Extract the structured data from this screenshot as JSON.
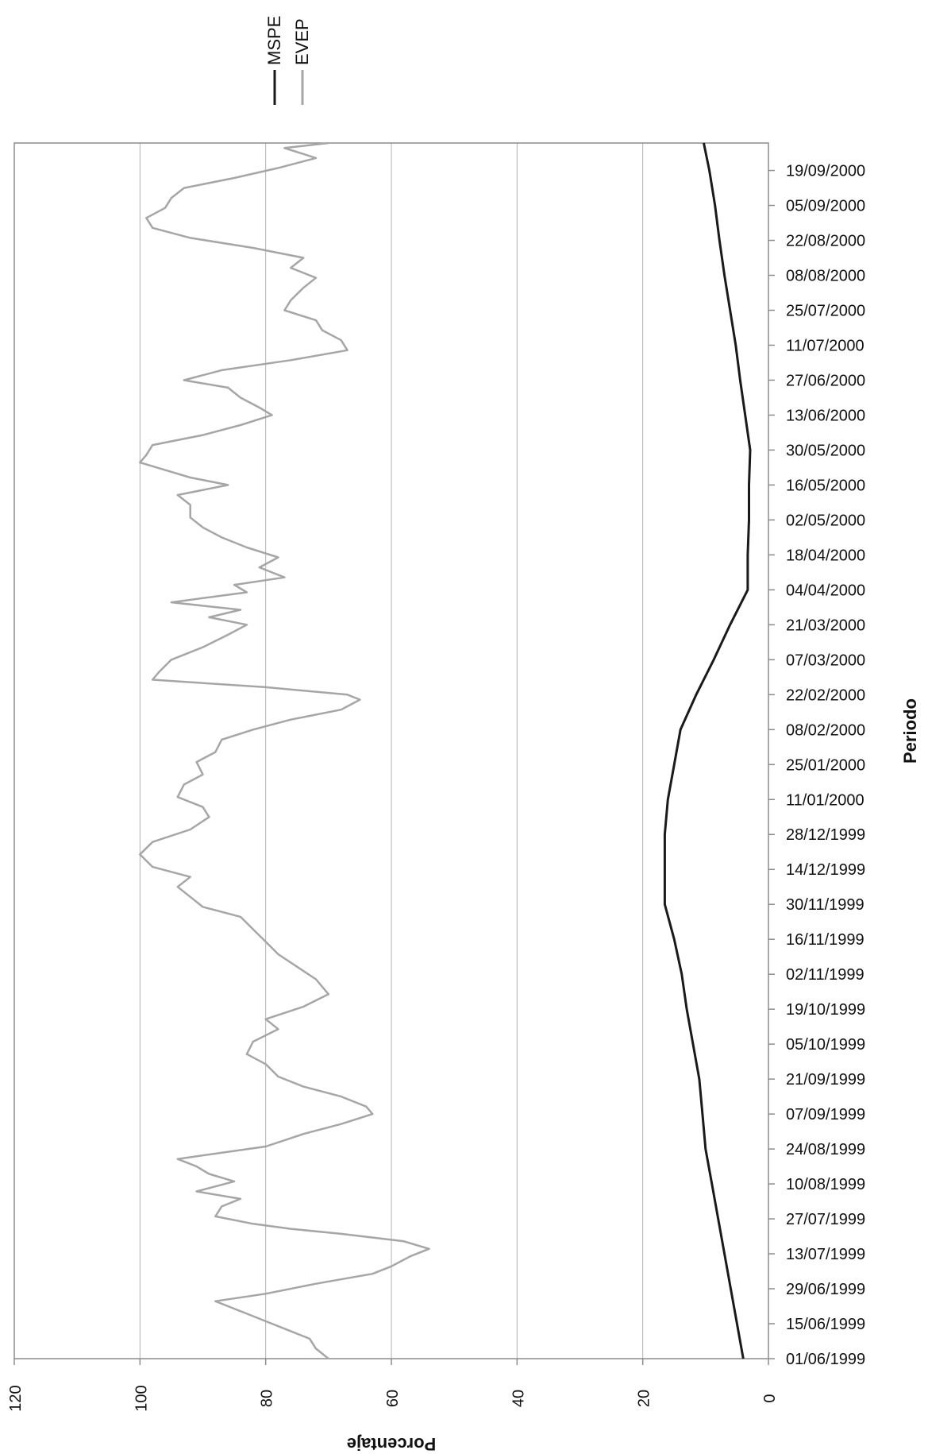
{
  "chart_data": {
    "type": "line",
    "orientation": "rotated-90",
    "xlabel": "Periodo",
    "ylabel": "Porcentaje",
    "ylim": [
      0,
      120
    ],
    "yticks": [
      0,
      20,
      40,
      60,
      80,
      100,
      120
    ],
    "x_ticks": [
      "01/06/1999",
      "15/06/1999",
      "29/06/1999",
      "13/07/1999",
      "27/07/1999",
      "10/08/1999",
      "24/08/1999",
      "07/09/1999",
      "21/09/1999",
      "05/10/1999",
      "19/10/1999",
      "02/11/1999",
      "16/11/1999",
      "30/11/1999",
      "14/12/1999",
      "28/12/1999",
      "11/01/2000",
      "25/01/2000",
      "08/02/2000",
      "22/02/2000",
      "07/03/2000",
      "21/03/2000",
      "04/04/2000",
      "18/04/2000",
      "02/05/2000",
      "16/05/2000",
      "30/05/2000",
      "13/06/2000",
      "27/06/2000",
      "11/07/2000",
      "25/07/2000",
      "08/08/2000",
      "22/08/2000",
      "05/09/2000",
      "19/09/2000"
    ],
    "grid": true,
    "legend_position": "top-right",
    "series": [
      {
        "name": "MSPE",
        "color": "#1a1a1a",
        "x": [
          "01/06/1999",
          "15/06/1999",
          "29/06/1999",
          "13/07/1999",
          "27/07/1999",
          "10/08/1999",
          "24/08/1999",
          "07/09/1999",
          "21/09/1999",
          "05/10/1999",
          "19/10/1999",
          "02/11/1999",
          "16/11/1999",
          "30/11/1999",
          "14/12/1999",
          "28/12/1999",
          "11/01/2000",
          "25/01/2000",
          "08/02/2000",
          "22/02/2000",
          "07/03/2000",
          "21/03/2000",
          "04/04/2000",
          "18/04/2000",
          "02/05/2000",
          "16/05/2000",
          "30/05/2000",
          "13/06/2000",
          "27/06/2000",
          "11/07/2000",
          "25/07/2000",
          "08/08/2000",
          "22/08/2000",
          "05/09/2000",
          "19/09/2000",
          "30/09/2000"
        ],
        "values": [
          4,
          5,
          6,
          7,
          8,
          9,
          10,
          10.5,
          11,
          12,
          13,
          13.8,
          15,
          16.5,
          16.5,
          16.5,
          16,
          15,
          14,
          11.5,
          8.7,
          6.1,
          3.3,
          3.3,
          3.1,
          3.1,
          2.9,
          3.7,
          4.5,
          5.2,
          6.1,
          7,
          7.8,
          8.5,
          9.4,
          10.3
        ]
      },
      {
        "name": "EVEP",
        "color": "#a6a6a6",
        "x": [
          "01/06/1999",
          "05/06/1999",
          "09/06/1999",
          "13/06/1999",
          "16/06/1999",
          "19/06/1999",
          "22/06/1999",
          "24/06/1999",
          "27/06/1999",
          "01/07/1999",
          "05/07/1999",
          "08/07/1999",
          "12/07/1999",
          "15/07/1999",
          "18/07/1999",
          "21/07/1999",
          "23/07/1999",
          "25/07/1999",
          "28/07/1999",
          "01/08/1999",
          "04/08/1999",
          "07/08/1999",
          "11/08/1999",
          "14/08/1999",
          "17/08/1999",
          "20/08/1999",
          "25/08/1999",
          "30/08/1999",
          "03/09/1999",
          "07/09/1999",
          "10/09/1999",
          "14/09/1999",
          "18/09/1999",
          "22/09/1999",
          "27/09/1999",
          "01/10/1999",
          "06/10/1999",
          "11/10/1999",
          "15/10/1999",
          "20/10/1999",
          "25/10/1999",
          "31/10/1999",
          "05/11/1999",
          "10/11/1999",
          "15/11/1999",
          "20/11/1999",
          "25/11/1999",
          "29/11/1999",
          "03/12/1999",
          "07/12/1999",
          "11/12/1999",
          "15/12/1999",
          "20/12/1999",
          "25/12/1999",
          "30/12/1999",
          "04/01/2000",
          "08/01/2000",
          "12/01/2000",
          "17/01/2000",
          "21/01/2000",
          "26/01/2000",
          "30/01/2000",
          "04/02/2000",
          "08/02/2000",
          "12/02/2000",
          "16/02/2000",
          "20/02/2000",
          "22/02/2000",
          "25/02/2000",
          "28/02/2000",
          "02/03/2000",
          "07/03/2000",
          "12/03/2000",
          "17/03/2000",
          "21/03/2000",
          "24/03/2000",
          "27/03/2000",
          "30/03/2000",
          "03/04/2000",
          "06/04/2000",
          "09/04/2000",
          "13/04/2000",
          "17/04/2000",
          "21/04/2000",
          "25/04/2000",
          "29/04/2000",
          "03/05/2000",
          "08/05/2000",
          "12/05/2000",
          "16/05/2000",
          "19/05/2000",
          "22/05/2000",
          "25/05/2000",
          "28/05/2000",
          "01/06/2000",
          "05/06/2000",
          "09/06/2000",
          "13/06/2000",
          "16/06/2000",
          "20/06/2000",
          "24/06/2000",
          "27/06/2000",
          "01/07/2000",
          "05/07/2000",
          "09/07/2000",
          "13/07/2000",
          "17/07/2000",
          "21/07/2000",
          "25/07/2000",
          "29/07/2000",
          "03/08/2000",
          "07/08/2000",
          "11/08/2000",
          "15/08/2000",
          "19/08/2000",
          "23/08/2000",
          "27/08/2000",
          "31/08/2000",
          "04/09/2000",
          "08/09/2000",
          "12/09/2000",
          "16/09/2000",
          "20/09/2000",
          "24/09/2000",
          "28/09/2000",
          "30/09/2000"
        ],
        "values": [
          70,
          72,
          73,
          77,
          80,
          83,
          86,
          88,
          80,
          72,
          63,
          60,
          57,
          54,
          58,
          68,
          76,
          82,
          88,
          87,
          84,
          91,
          85,
          89,
          91,
          94,
          80,
          74,
          68,
          63,
          64,
          68,
          74,
          78,
          80,
          83,
          82,
          78,
          80,
          74,
          70,
          72,
          75,
          78,
          80,
          82,
          84,
          90,
          92,
          94,
          92,
          98,
          100,
          98,
          92,
          89,
          90,
          94,
          93,
          90,
          91,
          88,
          87,
          82,
          76,
          68,
          65,
          67,
          80,
          98,
          97,
          95,
          90,
          86,
          83,
          89,
          84,
          95,
          83,
          85,
          77,
          81,
          78,
          83,
          87,
          90,
          92,
          92,
          94,
          86,
          92,
          96,
          100,
          99,
          98,
          90,
          84,
          79,
          81,
          84,
          86,
          93,
          87,
          76,
          67,
          68,
          71,
          72,
          77,
          76,
          74,
          72,
          76,
          74,
          82,
          92,
          98,
          99,
          96,
          95,
          93,
          85,
          78,
          72,
          77,
          70
        ]
      }
    ]
  }
}
